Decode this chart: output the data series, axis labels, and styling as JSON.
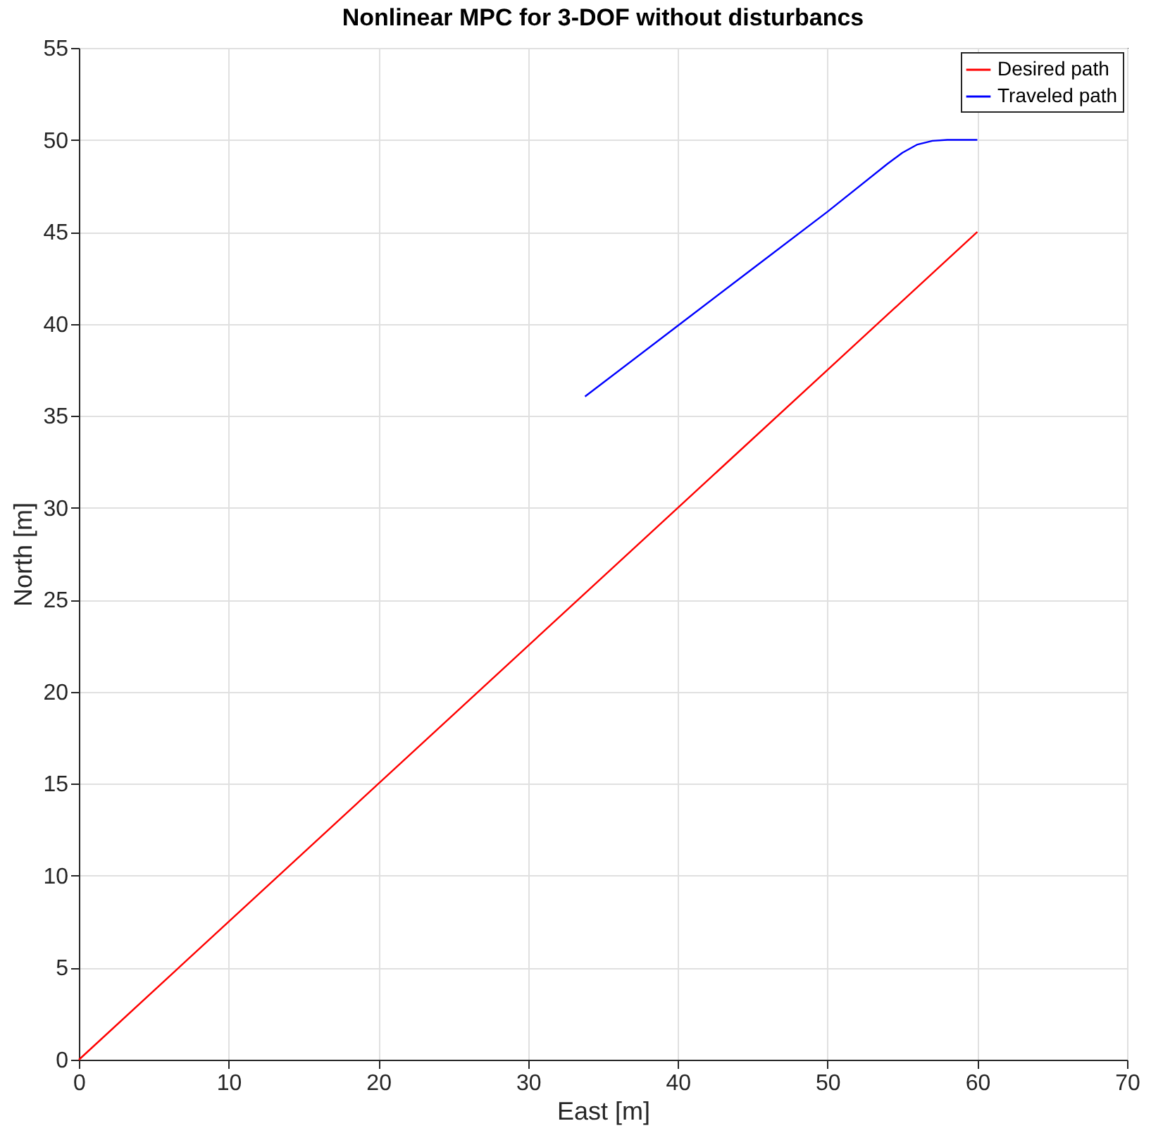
{
  "chart_data": {
    "type": "line",
    "title": "Nonlinear MPC for 3-DOF without disturbancs",
    "xlabel": "East [m]",
    "ylabel": "North [m]",
    "series": [
      {
        "name": "Desired path",
        "color": "#ff0000",
        "x": [
          0,
          60
        ],
        "values": [
          0,
          45
        ]
      },
      {
        "name": "Traveled path",
        "color": "#0000ff",
        "x": [
          33.8,
          40,
          45,
          50,
          54,
          55,
          56,
          57,
          58,
          60
        ],
        "values": [
          36.05,
          39.9,
          43.0,
          46.1,
          48.7,
          49.3,
          49.75,
          49.95,
          50,
          50
        ]
      }
    ],
    "xlim": [
      0,
      70
    ],
    "xticks": [
      0,
      10,
      20,
      30,
      40,
      50,
      60,
      70
    ],
    "ylim": [
      0,
      55
    ],
    "yticks": [
      0,
      5,
      10,
      15,
      20,
      25,
      30,
      35,
      40,
      45,
      50,
      55
    ],
    "grid": true,
    "legend": "top right",
    "marker": "none",
    "line_style": "solid"
  }
}
